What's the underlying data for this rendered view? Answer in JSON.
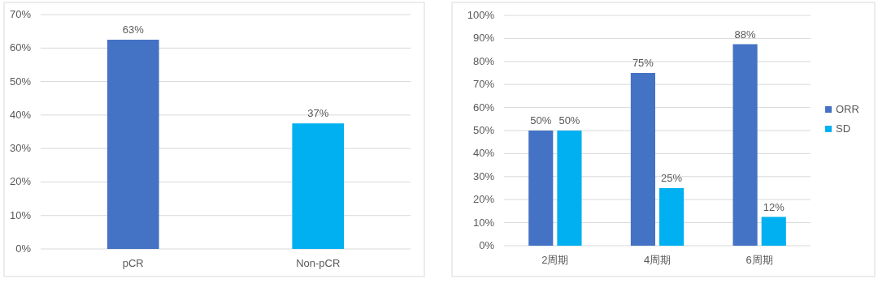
{
  "chart_data": [
    {
      "type": "bar",
      "categories": [
        "pCR",
        "Non-pCR"
      ],
      "series": [
        {
          "color": "#4472c4",
          "values": [
            62.5,
            null
          ],
          "value_labels": [
            "63%",
            null
          ]
        },
        {
          "color": "#00b0f0",
          "values": [
            null,
            37.5
          ],
          "value_labels": [
            null,
            "37%"
          ]
        }
      ],
      "ylim": [
        0,
        70
      ],
      "yticks": [
        {
          "value": 0,
          "label": "0%"
        },
        {
          "value": 10,
          "label": "10%"
        },
        {
          "value": 20,
          "label": "20%"
        },
        {
          "value": 30,
          "label": "30%"
        },
        {
          "value": 40,
          "label": "40%"
        },
        {
          "value": 50,
          "label": "50%"
        },
        {
          "value": 60,
          "label": "60%"
        },
        {
          "value": 70,
          "label": "70%"
        }
      ],
      "grid": "y"
    },
    {
      "type": "bar",
      "categories": [
        "2周期",
        "4周期",
        "6周期"
      ],
      "series": [
        {
          "name": "ORR",
          "color": "#4472c4",
          "values": [
            50,
            75,
            87.5
          ],
          "value_labels": [
            "50%",
            "75%",
            "88%"
          ]
        },
        {
          "name": "SD",
          "color": "#00b0f0",
          "values": [
            50,
            25,
            12.5
          ],
          "value_labels": [
            "50%",
            "25%",
            "12%"
          ]
        }
      ],
      "ylim": [
        0,
        100
      ],
      "yticks": [
        {
          "value": 0,
          "label": "0%"
        },
        {
          "value": 10,
          "label": "10%"
        },
        {
          "value": 20,
          "label": "20%"
        },
        {
          "value": 30,
          "label": "30%"
        },
        {
          "value": 40,
          "label": "40%"
        },
        {
          "value": 50,
          "label": "50%"
        },
        {
          "value": 60,
          "label": "60%"
        },
        {
          "value": 70,
          "label": "70%"
        },
        {
          "value": 80,
          "label": "80%"
        },
        {
          "value": 90,
          "label": "90%"
        },
        {
          "value": 100,
          "label": "100%"
        }
      ],
      "grid": "y",
      "legend": "right"
    }
  ]
}
